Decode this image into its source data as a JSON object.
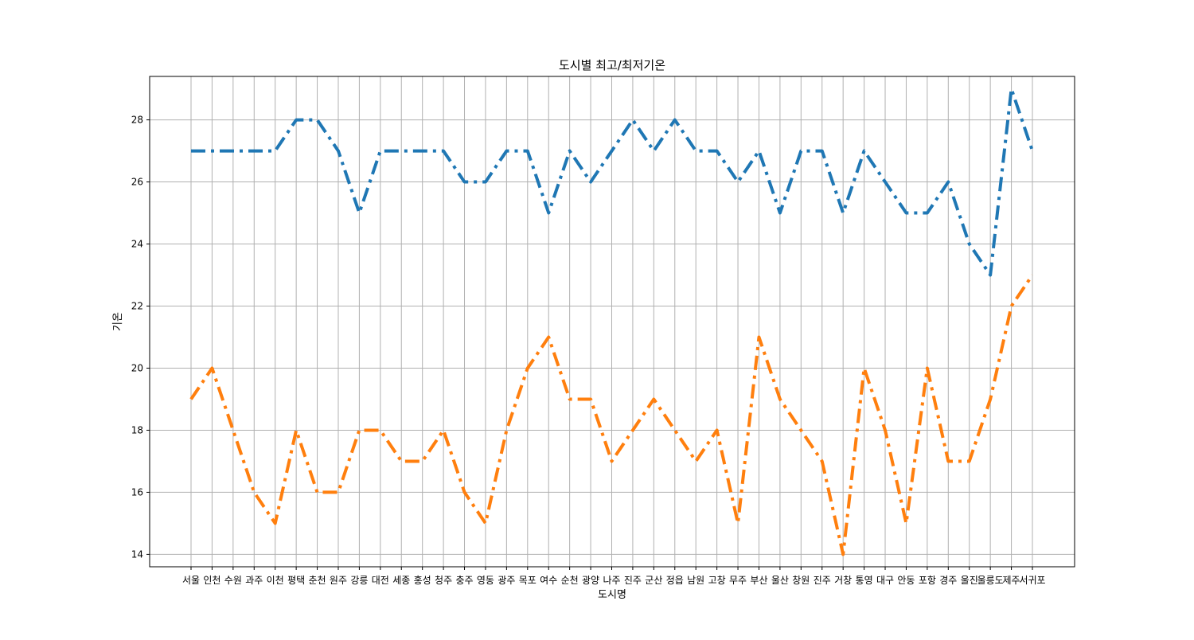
{
  "chart_data": {
    "type": "line",
    "title": "도시별 최고/최저기온",
    "xlabel": "도시명",
    "ylabel": "기온",
    "categories": [
      "서울",
      "인천",
      "수원",
      "과주",
      "이천",
      "평택",
      "춘천",
      "원주",
      "강릉",
      "대전",
      "세종",
      "홍성",
      "청주",
      "충주",
      "영동",
      "광주",
      "목포",
      "여수",
      "순천",
      "광양",
      "나주",
      "진주",
      "군산",
      "정읍",
      "남원",
      "고창",
      "무주",
      "부산",
      "울산",
      "창원",
      "진주",
      "거창",
      "통영",
      "대구",
      "안동",
      "포항",
      "경주",
      "울진",
      "울릉도",
      "제주",
      "서귀포"
    ],
    "series": [
      {
        "values": [
          27,
          27,
          27,
          27,
          27,
          28,
          28,
          27,
          25,
          27,
          27,
          27,
          27,
          26,
          26,
          27,
          27,
          25,
          27,
          26,
          27,
          28,
          27,
          28,
          27,
          27,
          26,
          27,
          25,
          27,
          27,
          25,
          27,
          26,
          25,
          25,
          26,
          24,
          23,
          29,
          27
        ],
        "color": "#1f77b4",
        "style": "dashdot"
      },
      {
        "values": [
          19,
          20,
          18,
          16,
          15,
          18,
          16,
          16,
          18,
          18,
          17,
          17,
          18,
          16,
          15,
          18,
          20,
          21,
          19,
          19,
          17,
          18,
          19,
          18,
          17,
          18,
          15,
          21,
          19,
          18,
          17,
          14,
          20,
          18,
          15,
          20,
          17,
          17,
          19,
          22,
          23
        ],
        "color": "#ff7f0e",
        "style": "dashdot"
      }
    ],
    "ylim": [
      13.6,
      29.4
    ],
    "yticks": [
      14,
      16,
      18,
      20,
      22,
      24,
      26,
      28
    ],
    "grid": true,
    "legend": "none"
  }
}
